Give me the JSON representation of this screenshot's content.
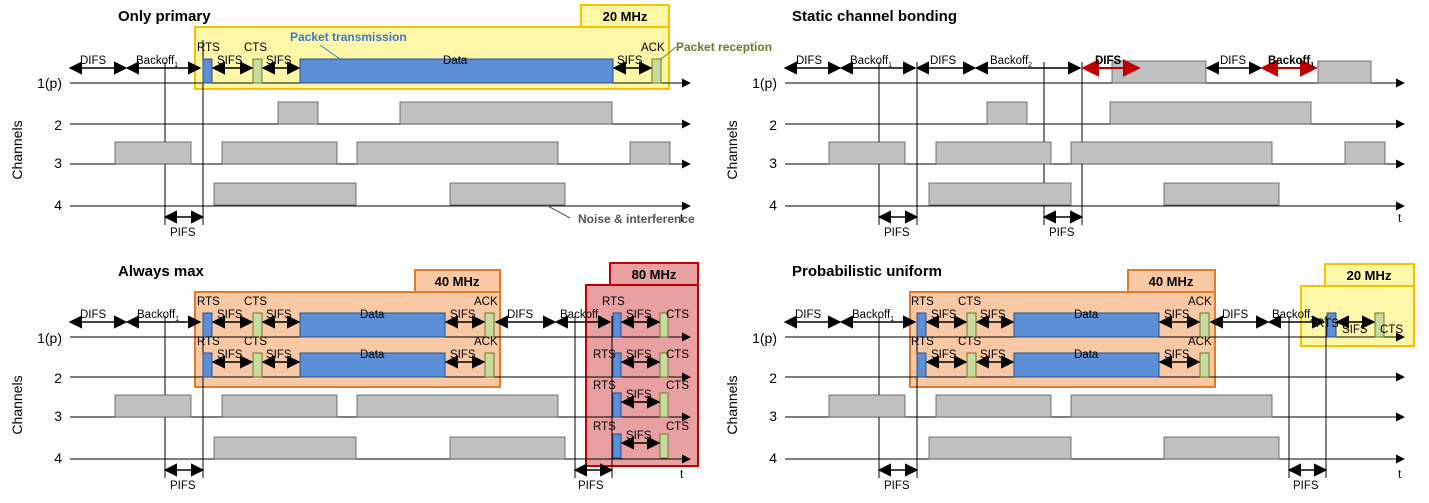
{
  "panels": [
    {
      "id": "only-primary",
      "title": "Only primary",
      "channel_axis_label": "Channels",
      "channel_labels": [
        "1(p)",
        "2",
        "3",
        "4"
      ],
      "time_label": "t",
      "boxes": [
        {
          "label": "20 MHz",
          "color": "#fff7a8",
          "border": "#f2c300"
        }
      ],
      "annotations": [
        "Packet transmission",
        "Packet reception",
        "Noise & interference"
      ],
      "timeline_labels": [
        "DIFS",
        "Backoff1",
        "RTS",
        "SIFS",
        "CTS",
        "SIFS",
        "Data",
        "SIFS",
        "ACK",
        "PIFS"
      ]
    },
    {
      "id": "static-channel-bonding",
      "title": "Static channel bonding",
      "channel_axis_label": "Channels",
      "channel_labels": [
        "1(p)",
        "2",
        "3",
        "4"
      ],
      "time_label": "t",
      "timeline_labels": [
        "DIFS",
        "Backoff1",
        "DIFS",
        "Backoff2",
        "DIFS",
        "DIFS",
        "Backoff1",
        "PIFS",
        "PIFS"
      ],
      "highlight_color": "#c00000"
    },
    {
      "id": "always-max",
      "title": "Always max",
      "channel_axis_label": "Channels",
      "channel_labels": [
        "1(p)",
        "2",
        "3",
        "4"
      ],
      "time_label": "t",
      "boxes": [
        {
          "label": "40 MHz",
          "color": "#f9c8a4",
          "border": "#e07b2a"
        },
        {
          "label": "80 MHz",
          "color": "#e8a0a0",
          "border": "#c00000"
        }
      ],
      "timeline_labels": [
        "DIFS",
        "Backoff1",
        "RTS",
        "SIFS",
        "CTS",
        "SIFS",
        "Data",
        "SIFS",
        "ACK",
        "DIFS",
        "Backoff2",
        "PIFS",
        "PIFS"
      ]
    },
    {
      "id": "probabilistic-uniform",
      "title": "Probabilistic uniform",
      "channel_axis_label": "Channels",
      "channel_labels": [
        "1(p)",
        "2",
        "3",
        "4"
      ],
      "time_label": "t",
      "boxes": [
        {
          "label": "40 MHz",
          "color": "#f9c8a4",
          "border": "#e07b2a"
        },
        {
          "label": "20 MHz",
          "color": "#fff7a8",
          "border": "#f2c300"
        }
      ],
      "timeline_labels": [
        "DIFS",
        "Backoff1",
        "RTS",
        "SIFS",
        "CTS",
        "SIFS",
        "Data",
        "SIFS",
        "ACK",
        "DIFS",
        "Backoff2",
        "PIFS",
        "PIFS"
      ]
    }
  ],
  "colors": {
    "noise": "#c0c0c0",
    "rts": "#5b8fd6",
    "cts": "#c8dba0",
    "data": "#5b8fd6",
    "annotation_blue": "#3a78c8",
    "annotation_green": "#6b7a2a"
  }
}
